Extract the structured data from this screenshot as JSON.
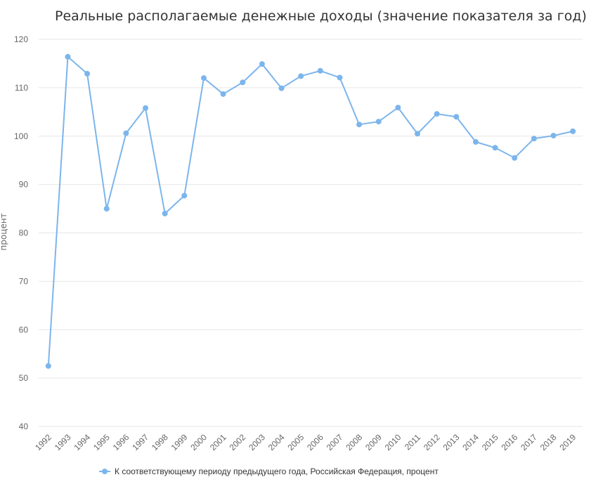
{
  "chart_data": {
    "type": "line",
    "title": "Реальные располагаемые денежные доходы (значение показателя за год)",
    "xlabel": "",
    "ylabel": "процент",
    "ylim": [
      40,
      120
    ],
    "yticks": [
      "40",
      "50",
      "60",
      "70",
      "80",
      "90",
      "100",
      "110",
      "120"
    ],
    "grid": true,
    "legend_position": "bottom",
    "categories": [
      "1992",
      "1993",
      "1994",
      "1995",
      "1996",
      "1997",
      "1998",
      "1999",
      "2000",
      "2001",
      "2002",
      "2003",
      "2004",
      "2005",
      "2006",
      "2007",
      "2008",
      "2009",
      "2010",
      "2011",
      "2012",
      "2013",
      "2014",
      "2015",
      "2016",
      "2017",
      "2018",
      "2019"
    ],
    "series": [
      {
        "name": "К соответствующему периоду предыдущего года, Российская Федерация, процент",
        "color": "#7cb5ec",
        "values": [
          52.5,
          116.4,
          112.9,
          85.0,
          100.6,
          105.8,
          84.0,
          87.7,
          112.0,
          108.7,
          111.1,
          114.9,
          109.9,
          112.4,
          113.5,
          112.1,
          102.4,
          103.0,
          105.9,
          100.5,
          104.6,
          104.0,
          98.8,
          97.6,
          95.5,
          99.5,
          100.1,
          101.0
        ]
      }
    ]
  }
}
